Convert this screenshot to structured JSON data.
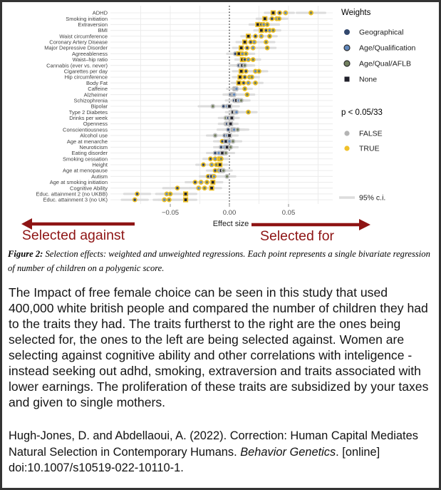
{
  "chart": {
    "axis": {
      "label": "Effect size",
      "ticks": [
        -0.05,
        0,
        0.05
      ],
      "tick_labels": [
        "−0.05",
        "0.00",
        "0.05"
      ]
    },
    "legend": {
      "weights_title": "Weights",
      "weights": [
        {
          "key": "geo",
          "label": "Geographical",
          "shape": "circle",
          "color": "#33486e"
        },
        {
          "key": "aq",
          "label": "Age/Qualification",
          "shape": "circle",
          "color": "#6189bd"
        },
        {
          "key": "aflb",
          "label": "Age/Qual/AFLB",
          "shape": "circle",
          "color": "#72805f"
        },
        {
          "key": "none",
          "label": "None",
          "shape": "square",
          "color": "#20202a"
        }
      ],
      "sig_title": "p < 0.05/33",
      "sig": [
        {
          "label": "FALSE",
          "color": "#b4b4b4"
        },
        {
          "label": "TRUE",
          "color": "#f0c12b"
        }
      ],
      "ci_label": "95% c.i."
    },
    "annotations": {
      "left": "Selected against",
      "right": "Selected for",
      "color": "#8e1414"
    },
    "colors": {
      "ci": "#dcdcdc",
      "grid": "#ececec",
      "tick": "#8a8a8a",
      "tick_label": "#4d4d4d",
      "trait_label": "#3f3f3f",
      "axis_label": "#1a1a1a",
      "sig_true": "#eec127",
      "sig_false": "#c4c4c4",
      "zero_line": "#111111",
      "legend_text": "#1c1c1c"
    }
  },
  "chart_data": {
    "type": "scatter",
    "title": "",
    "xlabel": "Effect size",
    "ylabel": "",
    "xlim": [
      -0.105,
      0.088
    ],
    "xticks": [
      -0.05,
      0,
      0.05
    ],
    "grid": true,
    "zero_reference_line": true,
    "legend_position": "right",
    "point_meaning": "Each point = bivariate regression of number of children on a polygenic score; weight key: geo=Geographical, aq=Age/Qualification, aflb=Age/Qual/AFLB, none=unweighted; sig = p < 0.05/33 (TRUE yellow, FALSE gray); gray bars = 95% c.i.",
    "rows": [
      {
        "label": "ADHD",
        "ciw": 0.007,
        "pts": [
          {
            "w": "none",
            "v": 0.037,
            "sig": true
          },
          {
            "w": "geo",
            "v": 0.0425,
            "sig": true
          },
          {
            "w": "aq",
            "v": 0.0475,
            "sig": true
          },
          {
            "w": "aflb",
            "v": 0.069,
            "sig": true,
            "ci": [
              0.057,
              0.081
            ]
          }
        ]
      },
      {
        "label": "Smoking initiation",
        "ciw": 0.007,
        "pts": [
          {
            "w": "none",
            "v": 0.03,
            "sig": true
          },
          {
            "w": "geo",
            "v": 0.036,
            "sig": true
          },
          {
            "w": "aq",
            "v": 0.04,
            "sig": true
          },
          {
            "w": "aflb",
            "v": 0.042,
            "sig": true
          }
        ]
      },
      {
        "label": "Extraversion",
        "ciw": 0.007,
        "pts": [
          {
            "w": "none",
            "v": 0.024,
            "sig": true
          },
          {
            "w": "geo",
            "v": 0.027,
            "sig": true
          },
          {
            "w": "aq",
            "v": 0.029,
            "sig": true
          },
          {
            "w": "aflb",
            "v": 0.032,
            "sig": true,
            "ci": [
              0.022,
              0.042
            ]
          }
        ]
      },
      {
        "label": "BMI",
        "ciw": 0.006,
        "pts": [
          {
            "w": "none",
            "v": 0.027,
            "sig": true
          },
          {
            "w": "geo",
            "v": 0.031,
            "sig": true
          },
          {
            "w": "aq",
            "v": 0.034,
            "sig": true
          },
          {
            "w": "aflb",
            "v": 0.037,
            "sig": true
          }
        ]
      },
      {
        "label": "Waist circumference",
        "ciw": 0.006,
        "pts": [
          {
            "w": "none",
            "v": 0.016,
            "sig": true
          },
          {
            "w": "geo",
            "v": 0.022,
            "sig": true
          },
          {
            "w": "aq",
            "v": 0.027,
            "sig": true
          },
          {
            "w": "aflb",
            "v": 0.034,
            "sig": true
          }
        ]
      },
      {
        "label": "Coronary Artery Disease",
        "ciw": 0.007,
        "pts": [
          {
            "w": "none",
            "v": 0.013,
            "sig": true
          },
          {
            "w": "geo",
            "v": 0.018,
            "sig": true
          },
          {
            "w": "aq",
            "v": 0.021,
            "sig": true
          },
          {
            "w": "aflb",
            "v": 0.031,
            "sig": true
          }
        ]
      },
      {
        "label": "Major Depressive Disorder",
        "ciw": 0.007,
        "pts": [
          {
            "w": "none",
            "v": 0.01,
            "sig": true
          },
          {
            "w": "geo",
            "v": 0.015,
            "sig": true
          },
          {
            "w": "aq",
            "v": 0.02,
            "sig": true
          },
          {
            "w": "aflb",
            "v": 0.032,
            "sig": true
          }
        ]
      },
      {
        "label": "Agreeableness",
        "ciw": 0.007,
        "pts": [
          {
            "w": "geo",
            "v": 0.005,
            "sig": false
          },
          {
            "w": "none",
            "v": 0.008,
            "sig": true
          },
          {
            "w": "aq",
            "v": 0.011,
            "sig": true
          },
          {
            "w": "aflb",
            "v": 0.014,
            "sig": true
          }
        ]
      },
      {
        "label": "Waist–hip ratio",
        "ciw": 0.006,
        "pts": [
          {
            "w": "none",
            "v": 0.011,
            "sig": true
          },
          {
            "w": "geo",
            "v": 0.013,
            "sig": true
          },
          {
            "w": "aq",
            "v": 0.016,
            "sig": true
          },
          {
            "w": "aflb",
            "v": 0.02,
            "sig": true
          }
        ]
      },
      {
        "label": "Cannabis (ever vs. never)",
        "ciw": 0.008,
        "pts": [
          {
            "w": "geo",
            "v": 0.008,
            "sig": false
          },
          {
            "w": "aq",
            "v": 0.01,
            "sig": false
          },
          {
            "w": "none",
            "v": 0.011,
            "sig": false
          },
          {
            "w": "aflb",
            "v": 0.013,
            "sig": false
          }
        ]
      },
      {
        "label": "Cigarettes per day",
        "ciw": 0.007,
        "pts": [
          {
            "w": "none",
            "v": 0.01,
            "sig": true
          },
          {
            "w": "geo",
            "v": 0.014,
            "sig": true
          },
          {
            "w": "aq",
            "v": 0.022,
            "sig": true
          },
          {
            "w": "aflb",
            "v": 0.025,
            "sig": true
          }
        ]
      },
      {
        "label": "Hip circumference",
        "ciw": 0.006,
        "pts": [
          {
            "w": "none",
            "v": 0.009,
            "sig": true
          },
          {
            "w": "geo",
            "v": 0.013,
            "sig": true
          },
          {
            "w": "aq",
            "v": 0.017,
            "sig": true
          },
          {
            "w": "aflb",
            "v": 0.019,
            "sig": true
          }
        ]
      },
      {
        "label": "Body Fat",
        "ciw": 0.006,
        "pts": [
          {
            "w": "none",
            "v": 0.008,
            "sig": true
          },
          {
            "w": "geo",
            "v": 0.012,
            "sig": true
          },
          {
            "w": "aq",
            "v": 0.016,
            "sig": true
          },
          {
            "w": "aflb",
            "v": 0.022,
            "sig": true
          }
        ]
      },
      {
        "label": "Caffeine",
        "ciw": 0.006,
        "pts": [
          {
            "w": "geo",
            "v": 0.004,
            "sig": false
          },
          {
            "w": "none",
            "v": 0.005,
            "sig": false
          },
          {
            "w": "aq",
            "v": 0.006,
            "sig": false
          },
          {
            "w": "aflb",
            "v": 0.013,
            "sig": true
          }
        ]
      },
      {
        "label": "Alzheimer",
        "ciw": 0.006,
        "pts": [
          {
            "w": "geo",
            "v": 0.001,
            "sig": false
          },
          {
            "w": "none",
            "v": 0.003,
            "sig": false
          },
          {
            "w": "aq",
            "v": 0.004,
            "sig": false
          },
          {
            "w": "aflb",
            "v": 0.015,
            "sig": true
          }
        ]
      },
      {
        "label": "Schizophrenia",
        "ciw": 0.007,
        "pts": [
          {
            "w": "geo",
            "v": 0.004,
            "sig": false
          },
          {
            "w": "none",
            "v": 0.006,
            "sig": false
          },
          {
            "w": "aq",
            "v": 0.008,
            "sig": false
          },
          {
            "w": "aflb",
            "v": 0.01,
            "sig": false
          }
        ]
      },
      {
        "label": "Bipolar",
        "ciw": 0.008,
        "pts": [
          {
            "w": "aflb",
            "v": -0.014,
            "sig": false,
            "ci": [
              -0.026,
              -0.002
            ]
          },
          {
            "w": "geo",
            "v": -0.005,
            "sig": false
          },
          {
            "w": "aq",
            "v": -0.002,
            "sig": false
          },
          {
            "w": "none",
            "v": 0.0,
            "sig": false
          }
        ]
      },
      {
        "label": "Type 2 Diabetes",
        "ciw": 0.006,
        "pts": [
          {
            "w": "none",
            "v": 0.003,
            "sig": false
          },
          {
            "w": "geo",
            "v": 0.005,
            "sig": false
          },
          {
            "w": "aq",
            "v": 0.006,
            "sig": false
          },
          {
            "w": "aflb",
            "v": 0.016,
            "sig": true,
            "ci": [
              0.009,
              0.023
            ]
          }
        ]
      },
      {
        "label": "Drinks per week",
        "ciw": 0.006,
        "pts": [
          {
            "w": "aflb",
            "v": -0.003,
            "sig": false
          },
          {
            "w": "geo",
            "v": -0.001,
            "sig": false
          },
          {
            "w": "aq",
            "v": 0.001,
            "sig": false
          },
          {
            "w": "none",
            "v": 0.002,
            "sig": false
          }
        ]
      },
      {
        "label": "Openness",
        "ciw": 0.006,
        "pts": [
          {
            "w": "aflb",
            "v": -0.003,
            "sig": false
          },
          {
            "w": "geo",
            "v": -0.002,
            "sig": false
          },
          {
            "w": "aq",
            "v": 0.0,
            "sig": false
          },
          {
            "w": "none",
            "v": 0.001,
            "sig": false
          }
        ]
      },
      {
        "label": "Conscientiousness",
        "ciw": 0.009,
        "pts": [
          {
            "w": "geo",
            "v": -0.001,
            "sig": false
          },
          {
            "w": "none",
            "v": 0.003,
            "sig": false
          },
          {
            "w": "aq",
            "v": 0.004,
            "sig": false
          },
          {
            "w": "aflb",
            "v": 0.007,
            "sig": false
          }
        ]
      },
      {
        "label": "Alcohol use",
        "ciw": 0.007,
        "pts": [
          {
            "w": "aflb",
            "v": -0.012,
            "sig": false
          },
          {
            "w": "geo",
            "v": -0.004,
            "sig": false
          },
          {
            "w": "aq",
            "v": -0.002,
            "sig": false
          },
          {
            "w": "none",
            "v": 0.0,
            "sig": false
          }
        ]
      },
      {
        "label": "Age at menarche",
        "ciw": 0.007,
        "pts": [
          {
            "w": "geo",
            "v": -0.006,
            "sig": true
          },
          {
            "w": "none",
            "v": -0.003,
            "sig": false
          },
          {
            "w": "aq",
            "v": 0.0,
            "sig": false
          },
          {
            "w": "aflb",
            "v": 0.003,
            "sig": false
          }
        ]
      },
      {
        "label": "Neuroticism",
        "ciw": 0.006,
        "pts": [
          {
            "w": "geo",
            "v": -0.007,
            "sig": false
          },
          {
            "w": "aq",
            "v": -0.004,
            "sig": false
          },
          {
            "w": "none",
            "v": -0.002,
            "sig": false
          },
          {
            "w": "aflb",
            "v": 0.001,
            "sig": false
          }
        ]
      },
      {
        "label": "Eating disorder",
        "ciw": 0.007,
        "pts": [
          {
            "w": "geo",
            "v": -0.012,
            "sig": false
          },
          {
            "w": "aq",
            "v": -0.009,
            "sig": false
          },
          {
            "w": "none",
            "v": -0.006,
            "sig": false
          },
          {
            "w": "aflb",
            "v": -0.003,
            "sig": false
          }
        ]
      },
      {
        "label": "Smoking cessation",
        "ciw": 0.006,
        "pts": [
          {
            "w": "geo",
            "v": -0.016,
            "sig": true
          },
          {
            "w": "aq",
            "v": -0.012,
            "sig": true
          },
          {
            "w": "none",
            "v": -0.008,
            "sig": true
          },
          {
            "w": "aflb",
            "v": -0.007,
            "sig": true
          }
        ]
      },
      {
        "label": "Height",
        "ciw": 0.006,
        "pts": [
          {
            "w": "geo",
            "v": -0.022,
            "sig": true
          },
          {
            "w": "aq",
            "v": -0.015,
            "sig": true
          },
          {
            "w": "aflb",
            "v": -0.011,
            "sig": true
          },
          {
            "w": "none",
            "v": -0.008,
            "sig": true
          }
        ]
      },
      {
        "label": "Age at menopause",
        "ciw": 0.007,
        "pts": [
          {
            "w": "geo",
            "v": -0.012,
            "sig": true
          },
          {
            "w": "aq",
            "v": -0.009,
            "sig": true
          },
          {
            "w": "none",
            "v": -0.007,
            "sig": false
          },
          {
            "w": "aflb",
            "v": -0.005,
            "sig": false
          }
        ]
      },
      {
        "label": "Autism",
        "ciw": 0.007,
        "pts": [
          {
            "w": "geo",
            "v": -0.018,
            "sig": true
          },
          {
            "w": "none",
            "v": -0.015,
            "sig": false
          },
          {
            "w": "aq",
            "v": -0.013,
            "sig": true
          },
          {
            "w": "aflb",
            "v": -0.002,
            "sig": false
          }
        ]
      },
      {
        "label": "Age at smoking initiation",
        "ciw": 0.008,
        "pts": [
          {
            "w": "geo",
            "v": -0.029,
            "sig": true
          },
          {
            "w": "aq",
            "v": -0.024,
            "sig": true
          },
          {
            "w": "aflb",
            "v": -0.019,
            "sig": true
          },
          {
            "w": "none",
            "v": -0.014,
            "sig": true
          }
        ]
      },
      {
        "label": "Cognitive Ability",
        "ciw": 0.008,
        "pts": [
          {
            "w": "geo",
            "v": -0.044,
            "sig": true,
            "ci": [
              -0.056,
              -0.032
            ]
          },
          {
            "w": "aq",
            "v": -0.026,
            "sig": true
          },
          {
            "w": "aflb",
            "v": -0.021,
            "sig": true
          },
          {
            "w": "none",
            "v": -0.015,
            "sig": true
          }
        ]
      },
      {
        "label": "Educ. attainment 2 (no UKBB)",
        "ciw": 0.009,
        "pts": [
          {
            "w": "geo",
            "v": -0.078,
            "sig": true,
            "ci": [
              -0.089,
              -0.067
            ]
          },
          {
            "w": "aq",
            "v": -0.053,
            "sig": true
          },
          {
            "w": "aflb",
            "v": -0.05,
            "sig": true
          },
          {
            "w": "none",
            "v": -0.037,
            "sig": true
          }
        ]
      },
      {
        "label": "Educ. attainment 3 (no UK)",
        "ciw": 0.009,
        "pts": [
          {
            "w": "geo",
            "v": -0.08,
            "sig": true,
            "ci": [
              -0.091,
              -0.069
            ]
          },
          {
            "w": "aq",
            "v": -0.055,
            "sig": true
          },
          {
            "w": "aflb",
            "v": -0.051,
            "sig": true
          },
          {
            "w": "none",
            "v": -0.037,
            "sig": true
          }
        ]
      }
    ]
  },
  "caption": {
    "prefix": "Figure 2:",
    "text": " Selection effects: weighted and unweighted regressions. Each point represents a single bivariate regression of number of children on a polygenic score."
  },
  "body_text": "The Impact of free female choice can be seen in this study that used 400,000 white british people and compared the number of children they had to the traits they had. The traits furtherst to the right are the ones being selected for, the ones to the left are being selected against. Women are selecting against cognitive ability and other correlations with inteligence - instead seeking out adhd, smoking, extraversion and traits associated with lower earnings. The proliferation of these traits are subsidized by your taxes and given to single mothers.",
  "citation": {
    "pre": "Hugh-Jones, D. and Abdellaoui, A. (2022). Correction: Human Capital Mediates Natural Selection in Contemporary Humans. ",
    "italic": "Behavior Genetics",
    "post": ". [online] doi:10.1007/s10519-022-10110-1."
  }
}
